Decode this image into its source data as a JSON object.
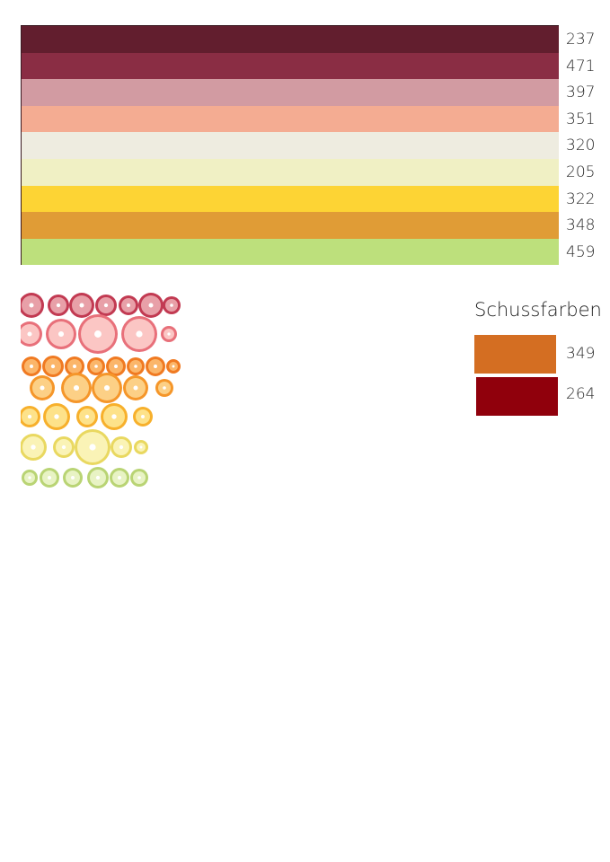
{
  "warp_colors": [
    {
      "code": "237",
      "color": "#621e2e"
    },
    {
      "code": "471",
      "color": "#8a2d44"
    },
    {
      "code": "397",
      "color": "#d29ba2"
    },
    {
      "code": "351",
      "color": "#f4ac92"
    },
    {
      "code": "320",
      "color": "#eeece0"
    },
    {
      "code": "205",
      "color": "#f0f0c4"
    },
    {
      "code": "322",
      "color": "#fdd434"
    },
    {
      "code": "348",
      "color": "#e09c36"
    },
    {
      "code": "459",
      "color": "#bde07c"
    }
  ],
  "weft": {
    "title": "Schussfarben",
    "colors": [
      {
        "code": "349",
        "color": "#d46e22"
      },
      {
        "code": "264",
        "color": "#90000c"
      }
    ]
  },
  "photo": {
    "icon": "citrus-slices-photo"
  }
}
